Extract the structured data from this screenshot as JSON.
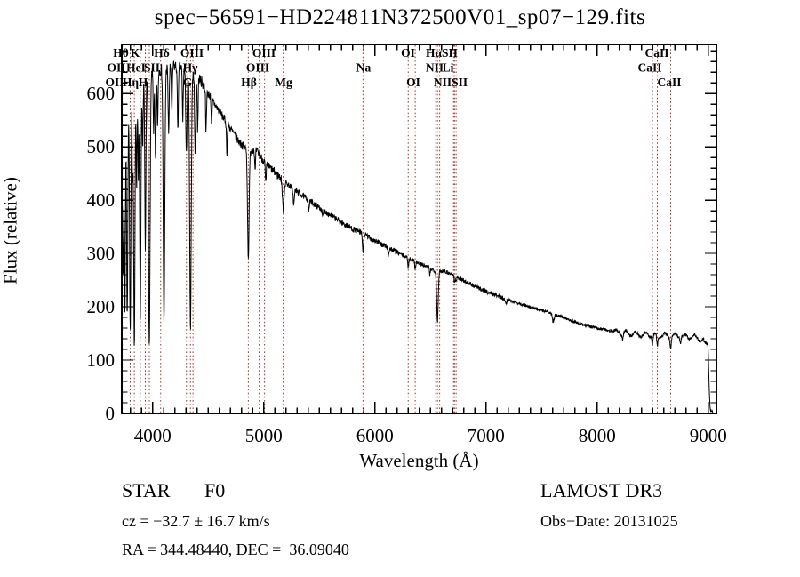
{
  "title": "spec−56591−HD224811N372500V01_sp07−129.fits",
  "colors": {
    "background": "#ffffff",
    "foreground": "#000000",
    "marker_line": "#a03530",
    "spectrum": "#000000"
  },
  "annotations": {
    "class_line": "STAR       F0",
    "cz_line": "cz = −32.7 ± 16.7 km/s",
    "radec_line": "RA = 344.48440, DEC =  36.09040",
    "survey_line": "LAMOST DR3",
    "obsdate_line": "Obs−Date: 20131025"
  },
  "chart_data": {
    "type": "line",
    "title": "spec−56591−HD224811N372500V01_sp07−129.fits",
    "xlabel": "Wavelength (Å)",
    "ylabel": "Flux (relative)",
    "xlim": [
      3722,
      9074
    ],
    "ylim": [
      0,
      692
    ],
    "x_ticks": [
      4000,
      5000,
      6000,
      7000,
      8000,
      9000
    ],
    "x_minor_step": 100,
    "y_ticks": [
      0,
      100,
      200,
      300,
      400,
      500,
      600
    ],
    "y_minor_step": 20,
    "grid": false,
    "legend": "none",
    "line_markers": [
      3727,
      3798,
      3835,
      3889,
      3934,
      3970,
      4072,
      4102,
      4304,
      4340,
      4363,
      4861,
      4959,
      5007,
      5175,
      5893,
      6300,
      6363,
      6548,
      6563,
      6583,
      6708,
      6717,
      6731,
      8498,
      8542,
      8662
    ],
    "line_labels": [
      {
        "text": "Hθ",
        "wavelength": 3714,
        "row": 1
      },
      {
        "text": "K",
        "wavelength": 3842,
        "row": 1
      },
      {
        "text": "Hδ",
        "wavelength": 4082,
        "row": 1
      },
      {
        "text": "OIII",
        "wavelength": 4354,
        "row": 1
      },
      {
        "text": "OIII",
        "wavelength": 5002,
        "row": 1
      },
      {
        "text": "OI",
        "wavelength": 6298,
        "row": 1
      },
      {
        "text": "HαSII",
        "wavelength": 6602,
        "row": 1
      },
      {
        "text": "CaII",
        "wavelength": 8538,
        "row": 1
      },
      {
        "text": "OII",
        "wavelength": 3674,
        "row": 2
      },
      {
        "text": "HeI",
        "wavelength": 3850,
        "row": 2
      },
      {
        "text": "SII",
        "wavelength": 3994,
        "row": 2
      },
      {
        "text": "Hγ",
        "wavelength": 4338,
        "row": 2
      },
      {
        "text": "OIII",
        "wavelength": 4946,
        "row": 2
      },
      {
        "text": "Na",
        "wavelength": 5898,
        "row": 2
      },
      {
        "text": "NII",
        "wavelength": 6538,
        "row": 2
      },
      {
        "text": "Li",
        "wavelength": 6658,
        "row": 2
      },
      {
        "text": "CaII",
        "wavelength": 8474,
        "row": 2
      },
      {
        "text": "OII",
        "wavelength": 3658,
        "row": 3
      },
      {
        "text": "Hη",
        "wavelength": 3802,
        "row": 3
      },
      {
        "text": "H",
        "wavelength": 3914,
        "row": 3
      },
      {
        "text": "G",
        "wavelength": 4314,
        "row": 3
      },
      {
        "text": "Hβ",
        "wavelength": 4866,
        "row": 3
      },
      {
        "text": "Mg",
        "wavelength": 5178,
        "row": 3
      },
      {
        "text": "OI",
        "wavelength": 6346,
        "row": 3
      },
      {
        "text": "NIISII",
        "wavelength": 6682,
        "row": 3
      },
      {
        "text": "CaII",
        "wavelength": 8650,
        "row": 3
      }
    ],
    "continuum": [
      [
        3722,
        575
      ],
      [
        3760,
        600
      ],
      [
        3800,
        615
      ],
      [
        3850,
        622
      ],
      [
        3900,
        630
      ],
      [
        3950,
        636
      ],
      [
        4000,
        640
      ],
      [
        4060,
        644
      ],
      [
        4120,
        648
      ],
      [
        4180,
        652
      ],
      [
        4240,
        650
      ],
      [
        4300,
        642
      ],
      [
        4360,
        636
      ],
      [
        4420,
        628
      ],
      [
        4470,
        612
      ],
      [
        4520,
        594
      ],
      [
        4570,
        576
      ],
      [
        4620,
        560
      ],
      [
        4670,
        544
      ],
      [
        4720,
        528
      ],
      [
        4770,
        512
      ],
      [
        4820,
        500
      ],
      [
        4870,
        492
      ],
      [
        4920,
        498
      ],
      [
        4970,
        482
      ],
      [
        5020,
        468
      ],
      [
        5100,
        452
      ],
      [
        5180,
        436
      ],
      [
        5260,
        422
      ],
      [
        5340,
        410
      ],
      [
        5420,
        398
      ],
      [
        5500,
        386
      ],
      [
        5600,
        372
      ],
      [
        5700,
        358
      ],
      [
        5800,
        346
      ],
      [
        5900,
        336
      ],
      [
        6000,
        324
      ],
      [
        6100,
        313
      ],
      [
        6200,
        302
      ],
      [
        6300,
        291
      ],
      [
        6400,
        281
      ],
      [
        6500,
        272
      ],
      [
        6570,
        264
      ],
      [
        6620,
        268
      ],
      [
        6700,
        260
      ],
      [
        6800,
        249
      ],
      [
        6900,
        238
      ],
      [
        7000,
        229
      ],
      [
        7100,
        221
      ],
      [
        7200,
        213
      ],
      [
        7300,
        206
      ],
      [
        7400,
        199
      ],
      [
        7500,
        194
      ],
      [
        7600,
        187
      ],
      [
        7700,
        180
      ],
      [
        7800,
        172
      ],
      [
        7900,
        165
      ],
      [
        8000,
        160
      ],
      [
        8100,
        156
      ],
      [
        8200,
        152
      ],
      [
        8300,
        150
      ],
      [
        8400,
        148
      ],
      [
        8500,
        147
      ],
      [
        8600,
        146
      ],
      [
        8700,
        145
      ],
      [
        8800,
        144
      ],
      [
        8900,
        143
      ],
      [
        8995,
        130
      ],
      [
        9000,
        115
      ],
      [
        9010,
        40
      ],
      [
        9018,
        8
      ],
      [
        9030,
        3
      ],
      [
        9040,
        2
      ]
    ],
    "absorption_lines": [
      [
        3727,
        130,
        4
      ],
      [
        3734,
        290,
        5
      ],
      [
        3750,
        400,
        5
      ],
      [
        3771,
        430,
        5.5
      ],
      [
        3798,
        465,
        6
      ],
      [
        3819,
        160,
        4
      ],
      [
        3835,
        495,
        6
      ],
      [
        3856,
        190,
        4
      ],
      [
        3871,
        170,
        4
      ],
      [
        3889,
        440,
        6
      ],
      [
        3910,
        140,
        4
      ],
      [
        3934,
        330,
        5
      ],
      [
        3970,
        515,
        7
      ],
      [
        4009,
        110,
        4
      ],
      [
        4026,
        170,
        5
      ],
      [
        4045,
        100,
        4
      ],
      [
        4102,
        480,
        7
      ],
      [
        4144,
        120,
        5
      ],
      [
        4173,
        90,
        4
      ],
      [
        4227,
        110,
        5
      ],
      [
        4271,
        95,
        4
      ],
      [
        4304,
        150,
        6
      ],
      [
        4340,
        480,
        7
      ],
      [
        4383,
        150,
        5
      ],
      [
        4405,
        100,
        4
      ],
      [
        4481,
        80,
        4
      ],
      [
        4531,
        50,
        4
      ],
      [
        4668,
        55,
        4
      ],
      [
        4861,
        200,
        7
      ],
      [
        4922,
        45,
        4
      ],
      [
        5018,
        40,
        4
      ],
      [
        5175,
        55,
        7
      ],
      [
        5270,
        30,
        5
      ],
      [
        5406,
        22,
        4
      ],
      [
        5530,
        15,
        4
      ],
      [
        5893,
        35,
        5
      ],
      [
        6122,
        14,
        4
      ],
      [
        6300,
        17,
        4
      ],
      [
        6363,
        13,
        4
      ],
      [
        6495,
        14,
        4
      ],
      [
        6563,
        92,
        6.5
      ],
      [
        6717,
        13,
        4
      ],
      [
        6731,
        11,
        4
      ],
      [
        7180,
        10,
        5
      ],
      [
        7605,
        15,
        8
      ],
      [
        8230,
        10,
        5
      ],
      [
        8498,
        17,
        5
      ],
      [
        8542,
        21,
        5
      ],
      [
        8662,
        19,
        5
      ],
      [
        8750,
        10,
        4
      ]
    ],
    "noise": {
      "seed": 7,
      "bands": [
        [
          3900,
          16
        ],
        [
          4500,
          11
        ],
        [
          5200,
          8
        ],
        [
          6200,
          5.5
        ],
        [
          7200,
          4
        ],
        [
          9999,
          2.8
        ]
      ],
      "red_ripple": {
        "from": 8150,
        "to": 8960,
        "amplitude": 4.5,
        "period_div": 14
      }
    },
    "sample_step": 2.5
  }
}
